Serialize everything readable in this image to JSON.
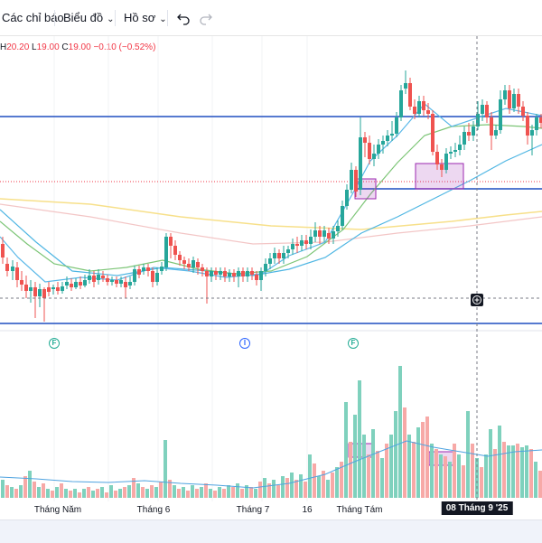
{
  "toolbar": {
    "indicators_label": "Các chỉ báo",
    "chart_label": "Biểu đồ",
    "profile_label": "Hồ sơ",
    "undo_icon": "undo-icon",
    "redo_icon": "redo-icon"
  },
  "ohlc": {
    "h_key": "H",
    "h_val": "20.20",
    "l_key": "L",
    "l_val": "19.00",
    "c_key": "C",
    "c_val": "19.00",
    "change": "−0.10 (−0.52%)"
  },
  "events": [
    {
      "letter": "F",
      "color": "#22ab94"
    },
    {
      "letter": "I",
      "color": "#2962ff"
    },
    {
      "letter": "F",
      "color": "#22ab94"
    }
  ],
  "time_axis": {
    "labels": [
      "Tháng Năm",
      "Tháng 6",
      "Tháng 7",
      "16",
      "Tháng Tám"
    ],
    "highlight": "08 Tháng 9 '25"
  },
  "colors": {
    "up": "#26a69a",
    "down": "#ef5350",
    "vol_up": "#7fd1bd",
    "vol_down": "#f7a9a7",
    "hline": "#1f4fc1",
    "ma_blue": "#4fb6e3",
    "ma_green": "#7cc576",
    "ma_yellow": "#f7e08a",
    "ma_pink": "#f3c6c6",
    "box": "#9c27b0"
  }
}
